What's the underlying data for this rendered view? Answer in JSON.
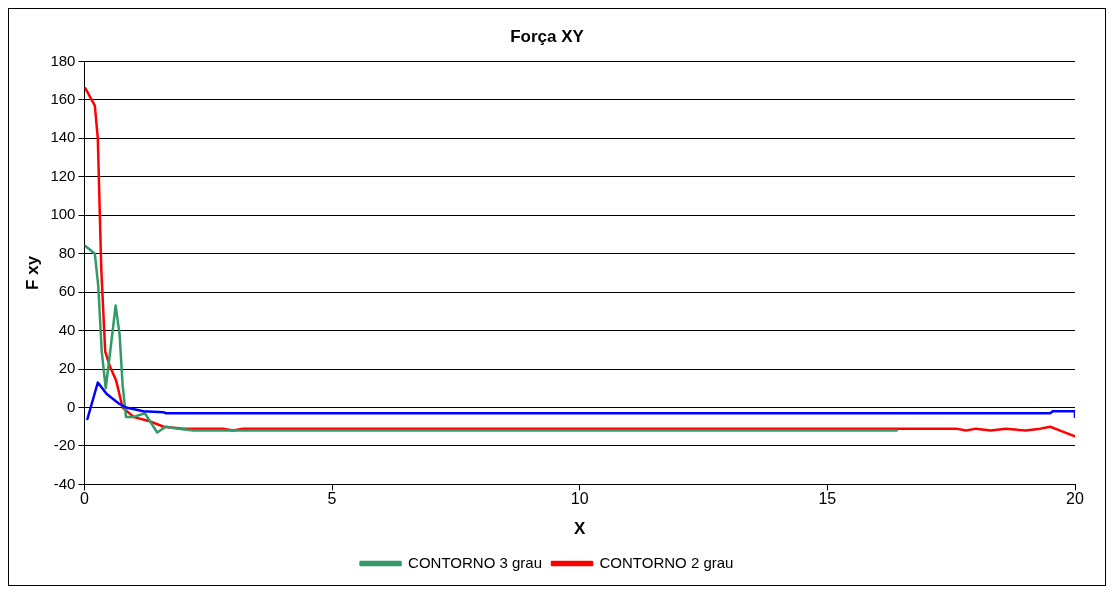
{
  "chart_data": {
    "type": "line",
    "title": "Força XY",
    "xlabel": "X",
    "ylabel": "F xy",
    "xlim": [
      0,
      20
    ],
    "xticks": [
      0,
      5,
      10,
      15,
      20
    ],
    "ylim": [
      -40,
      180
    ],
    "yticks": [
      -40,
      -20,
      0,
      20,
      40,
      60,
      80,
      100,
      120,
      140,
      160,
      180
    ],
    "grid": "y",
    "legend": "bottom",
    "marker": "none",
    "line_style": "solid",
    "series": [
      {
        "color": "#0000ff",
        "x": [
          0.06,
          0.27,
          0.45,
          0.7,
          0.84,
          1.19,
          1.6,
          1.65,
          19.5,
          19.55,
          20,
          20
        ],
        "values": [
          -6,
          13,
          7,
          2,
          0,
          -2,
          -2.5,
          -3,
          -3,
          -2,
          -2,
          -5
        ]
      },
      {
        "name": "CONTORNO 3 grau",
        "color": "#339966",
        "x": [
          0.02,
          0.21,
          0.28,
          0.35,
          0.43,
          0.52,
          0.63,
          0.71,
          0.77,
          0.84,
          0.98,
          1.22,
          1.47,
          1.64,
          1.9,
          2.2,
          16.4
        ],
        "values": [
          84,
          80,
          63,
          29,
          10,
          29,
          53,
          38,
          12,
          -5,
          -5,
          -3,
          -13,
          -10,
          -11,
          -12,
          -12
        ]
      },
      {
        "name": "CONTORNO 2 grau",
        "color": "#ff0000",
        "x": [
          0.02,
          0.21,
          0.27,
          0.34,
          0.42,
          0.52,
          0.64,
          0.77,
          1.0,
          1.3,
          1.6,
          2,
          2.8,
          3,
          3.2,
          17.6,
          17.8,
          18,
          18.3,
          18.6,
          19,
          19.3,
          19.5,
          19.7,
          20
        ],
        "values": [
          166,
          157,
          140,
          72,
          29,
          21,
          14,
          0,
          -5,
          -7,
          -10,
          -11,
          -11,
          -12,
          -11,
          -11,
          -12,
          -11,
          -12,
          -11,
          -12,
          -11,
          -10,
          -12,
          -15
        ]
      }
    ]
  }
}
